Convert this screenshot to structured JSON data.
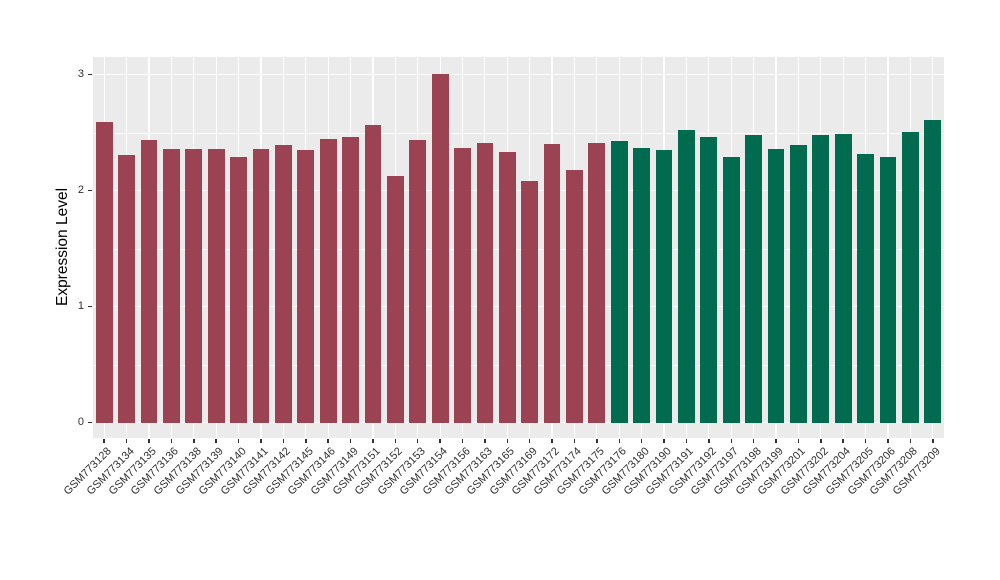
{
  "chart_data": {
    "type": "bar",
    "title": "",
    "xlabel": "",
    "ylabel": "Expression Level",
    "ylim": [
      0,
      3.15
    ],
    "yticks": [
      0,
      1,
      2,
      3
    ],
    "minor_gridlines": [
      0.5,
      1.5,
      2.5
    ],
    "grid": "white major and minor gridlines on light gray panel (ggplot style)",
    "legend_position": "none",
    "x_tick_rotation_deg": 45,
    "group_colors": {
      "group1": "#9B4353",
      "group2": "#006B4E"
    },
    "panel_background": "#EBEBEB",
    "bars": [
      {
        "label": "GSM773128",
        "value": 2.59,
        "group": "group1"
      },
      {
        "label": "GSM773134",
        "value": 2.31,
        "group": "group1"
      },
      {
        "label": "GSM773135",
        "value": 2.44,
        "group": "group1"
      },
      {
        "label": "GSM773136",
        "value": 2.36,
        "group": "group1"
      },
      {
        "label": "GSM773138",
        "value": 2.36,
        "group": "group1"
      },
      {
        "label": "GSM773139",
        "value": 2.36,
        "group": "group1"
      },
      {
        "label": "GSM773140",
        "value": 2.29,
        "group": "group1"
      },
      {
        "label": "GSM773141",
        "value": 2.36,
        "group": "group1"
      },
      {
        "label": "GSM773142",
        "value": 2.39,
        "group": "group1"
      },
      {
        "label": "GSM773145",
        "value": 2.35,
        "group": "group1"
      },
      {
        "label": "GSM773146",
        "value": 2.45,
        "group": "group1"
      },
      {
        "label": "GSM773149",
        "value": 2.46,
        "group": "group1"
      },
      {
        "label": "GSM773151",
        "value": 2.57,
        "group": "group1"
      },
      {
        "label": "GSM773152",
        "value": 2.13,
        "group": "group1"
      },
      {
        "label": "GSM773153",
        "value": 2.44,
        "group": "group1"
      },
      {
        "label": "GSM773154",
        "value": 3.01,
        "group": "group1"
      },
      {
        "label": "GSM773156",
        "value": 2.37,
        "group": "group1"
      },
      {
        "label": "GSM773163",
        "value": 2.41,
        "group": "group1"
      },
      {
        "label": "GSM773165",
        "value": 2.33,
        "group": "group1"
      },
      {
        "label": "GSM773169",
        "value": 2.08,
        "group": "group1"
      },
      {
        "label": "GSM773172",
        "value": 2.4,
        "group": "group1"
      },
      {
        "label": "GSM773174",
        "value": 2.18,
        "group": "group1"
      },
      {
        "label": "GSM773175",
        "value": 2.41,
        "group": "group1"
      },
      {
        "label": "GSM773176",
        "value": 2.43,
        "group": "group2"
      },
      {
        "label": "GSM773180",
        "value": 2.37,
        "group": "group2"
      },
      {
        "label": "GSM773190",
        "value": 2.35,
        "group": "group2"
      },
      {
        "label": "GSM773191",
        "value": 2.52,
        "group": "group2"
      },
      {
        "label": "GSM773192",
        "value": 2.46,
        "group": "group2"
      },
      {
        "label": "GSM773197",
        "value": 2.29,
        "group": "group2"
      },
      {
        "label": "GSM773198",
        "value": 2.48,
        "group": "group2"
      },
      {
        "label": "GSM773199",
        "value": 2.36,
        "group": "group2"
      },
      {
        "label": "GSM773201",
        "value": 2.39,
        "group": "group2"
      },
      {
        "label": "GSM773202",
        "value": 2.48,
        "group": "group2"
      },
      {
        "label": "GSM773204",
        "value": 2.49,
        "group": "group2"
      },
      {
        "label": "GSM773205",
        "value": 2.32,
        "group": "group2"
      },
      {
        "label": "GSM773206",
        "value": 2.29,
        "group": "group2"
      },
      {
        "label": "GSM773208",
        "value": 2.51,
        "group": "group2"
      },
      {
        "label": "GSM773209",
        "value": 2.61,
        "group": "group2"
      }
    ]
  }
}
